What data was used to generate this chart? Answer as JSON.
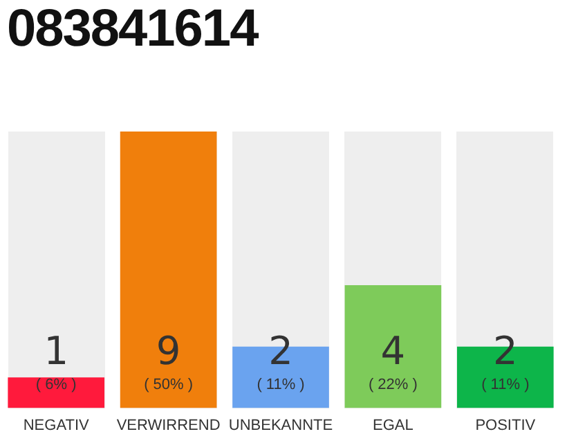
{
  "chart_data": {
    "type": "bar",
    "title": "083841614",
    "categories": [
      "NEGATIV",
      "VERWIRREND",
      "UNBEKANNTE",
      "EGAL",
      "POSITIV"
    ],
    "values": [
      1,
      9,
      2,
      4,
      2
    ],
    "colors": [
      "#ff1a3c",
      "#f07f0c",
      "#6aa3ef",
      "#7ecb5a",
      "#0db54a"
    ],
    "value_labels": [
      "1\n( 6% )",
      "9\n( 50% )",
      "2\n( 11% )",
      "4\n( 22% )",
      "2\n( 11% )"
    ],
    "tick_labels": "x",
    "grid": false,
    "legend": false
  }
}
